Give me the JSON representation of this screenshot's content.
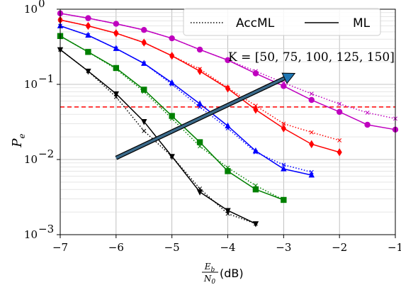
{
  "chart_data": {
    "type": "line",
    "title": "",
    "xlabel": "E_b/N_0 (dB)",
    "xlabel_parts": {
      "numerator": "E",
      "numerator_sub": "b",
      "denominator": "N",
      "denominator_sub": "0",
      "unit": "(dB)"
    },
    "ylabel": "P_e",
    "ylabel_parts": {
      "main": "P",
      "sub": "e"
    },
    "xlim": [
      -7,
      -1
    ],
    "ylim": [
      0.001,
      1
    ],
    "yscale": "log",
    "grid": true,
    "x_ticks": [
      -7,
      -6,
      -5,
      -4,
      -3,
      -2,
      -1
    ],
    "x_tick_labels": [
      "−7",
      "−6",
      "−5",
      "−4",
      "−3",
      "−2",
      "−1"
    ],
    "y_ticks": [
      1,
      0.1,
      0.01,
      0.001
    ],
    "y_tick_labels": [
      {
        "base": "10",
        "exp": "0"
      },
      {
        "base": "10",
        "exp": "−1"
      },
      {
        "base": "10",
        "exp": "−2"
      },
      {
        "base": "10",
        "exp": "−3"
      }
    ],
    "threshold": {
      "y": 0.05,
      "color": "#ff0000",
      "style": "dashed"
    },
    "legend": {
      "position": "top-right",
      "entries": [
        {
          "label": "AccML",
          "style": "dotted"
        },
        {
          "label": "ML",
          "style": "solid"
        }
      ]
    },
    "annotation": {
      "text": "K = [50, 75, 100, 125, 150]",
      "arrow_from": [
        -6.0,
        0.0105
      ],
      "arrow_to": [
        -2.8,
        0.14
      ]
    },
    "series": [
      {
        "color": "#000000",
        "marker": "triangle-down",
        "ml": {
          "x": [
            -7,
            -6.5,
            -6,
            -5.5,
            -5,
            -4.5,
            -4,
            -3.5
          ],
          "y": [
            0.29,
            0.15,
            0.075,
            0.032,
            0.011,
            0.0037,
            0.0021,
            0.0014
          ]
        },
        "accml": {
          "x": [
            -7,
            -6.5,
            -6,
            -5.5,
            -5,
            -4.5,
            -4,
            -3.5
          ],
          "y": [
            0.29,
            0.15,
            0.068,
            0.024,
            0.011,
            0.0041,
            0.0019,
            0.0014
          ]
        }
      },
      {
        "color": "#008000",
        "marker": "square",
        "ml": {
          "x": [
            -7,
            -6.5,
            -6,
            -5.5,
            -5,
            -4.5,
            -4,
            -3.5,
            -3
          ],
          "y": [
            0.44,
            0.27,
            0.165,
            0.085,
            0.038,
            0.017,
            0.007,
            0.004,
            0.0029
          ]
        },
        "accml": {
          "x": [
            -7,
            -6.5,
            -6,
            -5.5,
            -5,
            -4.5,
            -4,
            -3.5,
            -3
          ],
          "y": [
            0.44,
            0.27,
            0.16,
            0.08,
            0.035,
            0.015,
            0.0078,
            0.0045,
            0.0029
          ]
        }
      },
      {
        "color": "#0000ff",
        "marker": "triangle-up",
        "ml": {
          "x": [
            -7,
            -6.5,
            -6,
            -5.5,
            -5,
            -4.5,
            -4,
            -3.5,
            -3,
            -2.5
          ],
          "y": [
            0.6,
            0.45,
            0.3,
            0.19,
            0.105,
            0.055,
            0.028,
            0.013,
            0.0075,
            0.0062
          ]
        },
        "accml": {
          "x": [
            -7,
            -6.5,
            -6,
            -5.5,
            -5,
            -4.5,
            -4,
            -3.5,
            -3,
            -2.5
          ],
          "y": [
            0.6,
            0.45,
            0.3,
            0.19,
            0.1,
            0.05,
            0.026,
            0.0125,
            0.0085,
            0.0068
          ]
        }
      },
      {
        "color": "#ff0000",
        "marker": "diamond",
        "ml": {
          "x": [
            -7,
            -6.5,
            -6,
            -5.5,
            -5,
            -4.5,
            -4,
            -3.5,
            -3,
            -2.5,
            -2
          ],
          "y": [
            0.72,
            0.6,
            0.48,
            0.36,
            0.24,
            0.15,
            0.088,
            0.046,
            0.026,
            0.016,
            0.0125
          ]
        },
        "accml": {
          "x": [
            -7,
            -6.5,
            -6,
            -5.5,
            -5,
            -4.5,
            -4,
            -3.5,
            -3,
            -2.5,
            -2
          ],
          "y": [
            0.72,
            0.6,
            0.48,
            0.36,
            0.24,
            0.16,
            0.09,
            0.052,
            0.03,
            0.023,
            0.018
          ]
        }
      },
      {
        "color": "#bf00bf",
        "marker": "circle",
        "ml": {
          "x": [
            -7,
            -6.5,
            -6,
            -5.5,
            -5,
            -4.5,
            -4,
            -3.5,
            -3,
            -2.5,
            -2,
            -1.5,
            -1
          ],
          "y": [
            0.88,
            0.76,
            0.64,
            0.53,
            0.41,
            0.29,
            0.21,
            0.14,
            0.095,
            0.062,
            0.043,
            0.029,
            0.025
          ]
        },
        "accml": {
          "x": [
            -7,
            -6.5,
            -6,
            -5.5,
            -5,
            -4.5,
            -4,
            -3.5,
            -3,
            -2.5,
            -2,
            -1.5,
            -1
          ],
          "y": [
            0.88,
            0.76,
            0.64,
            0.53,
            0.41,
            0.29,
            0.21,
            0.15,
            0.105,
            0.075,
            0.055,
            0.042,
            0.035
          ]
        }
      }
    ]
  }
}
